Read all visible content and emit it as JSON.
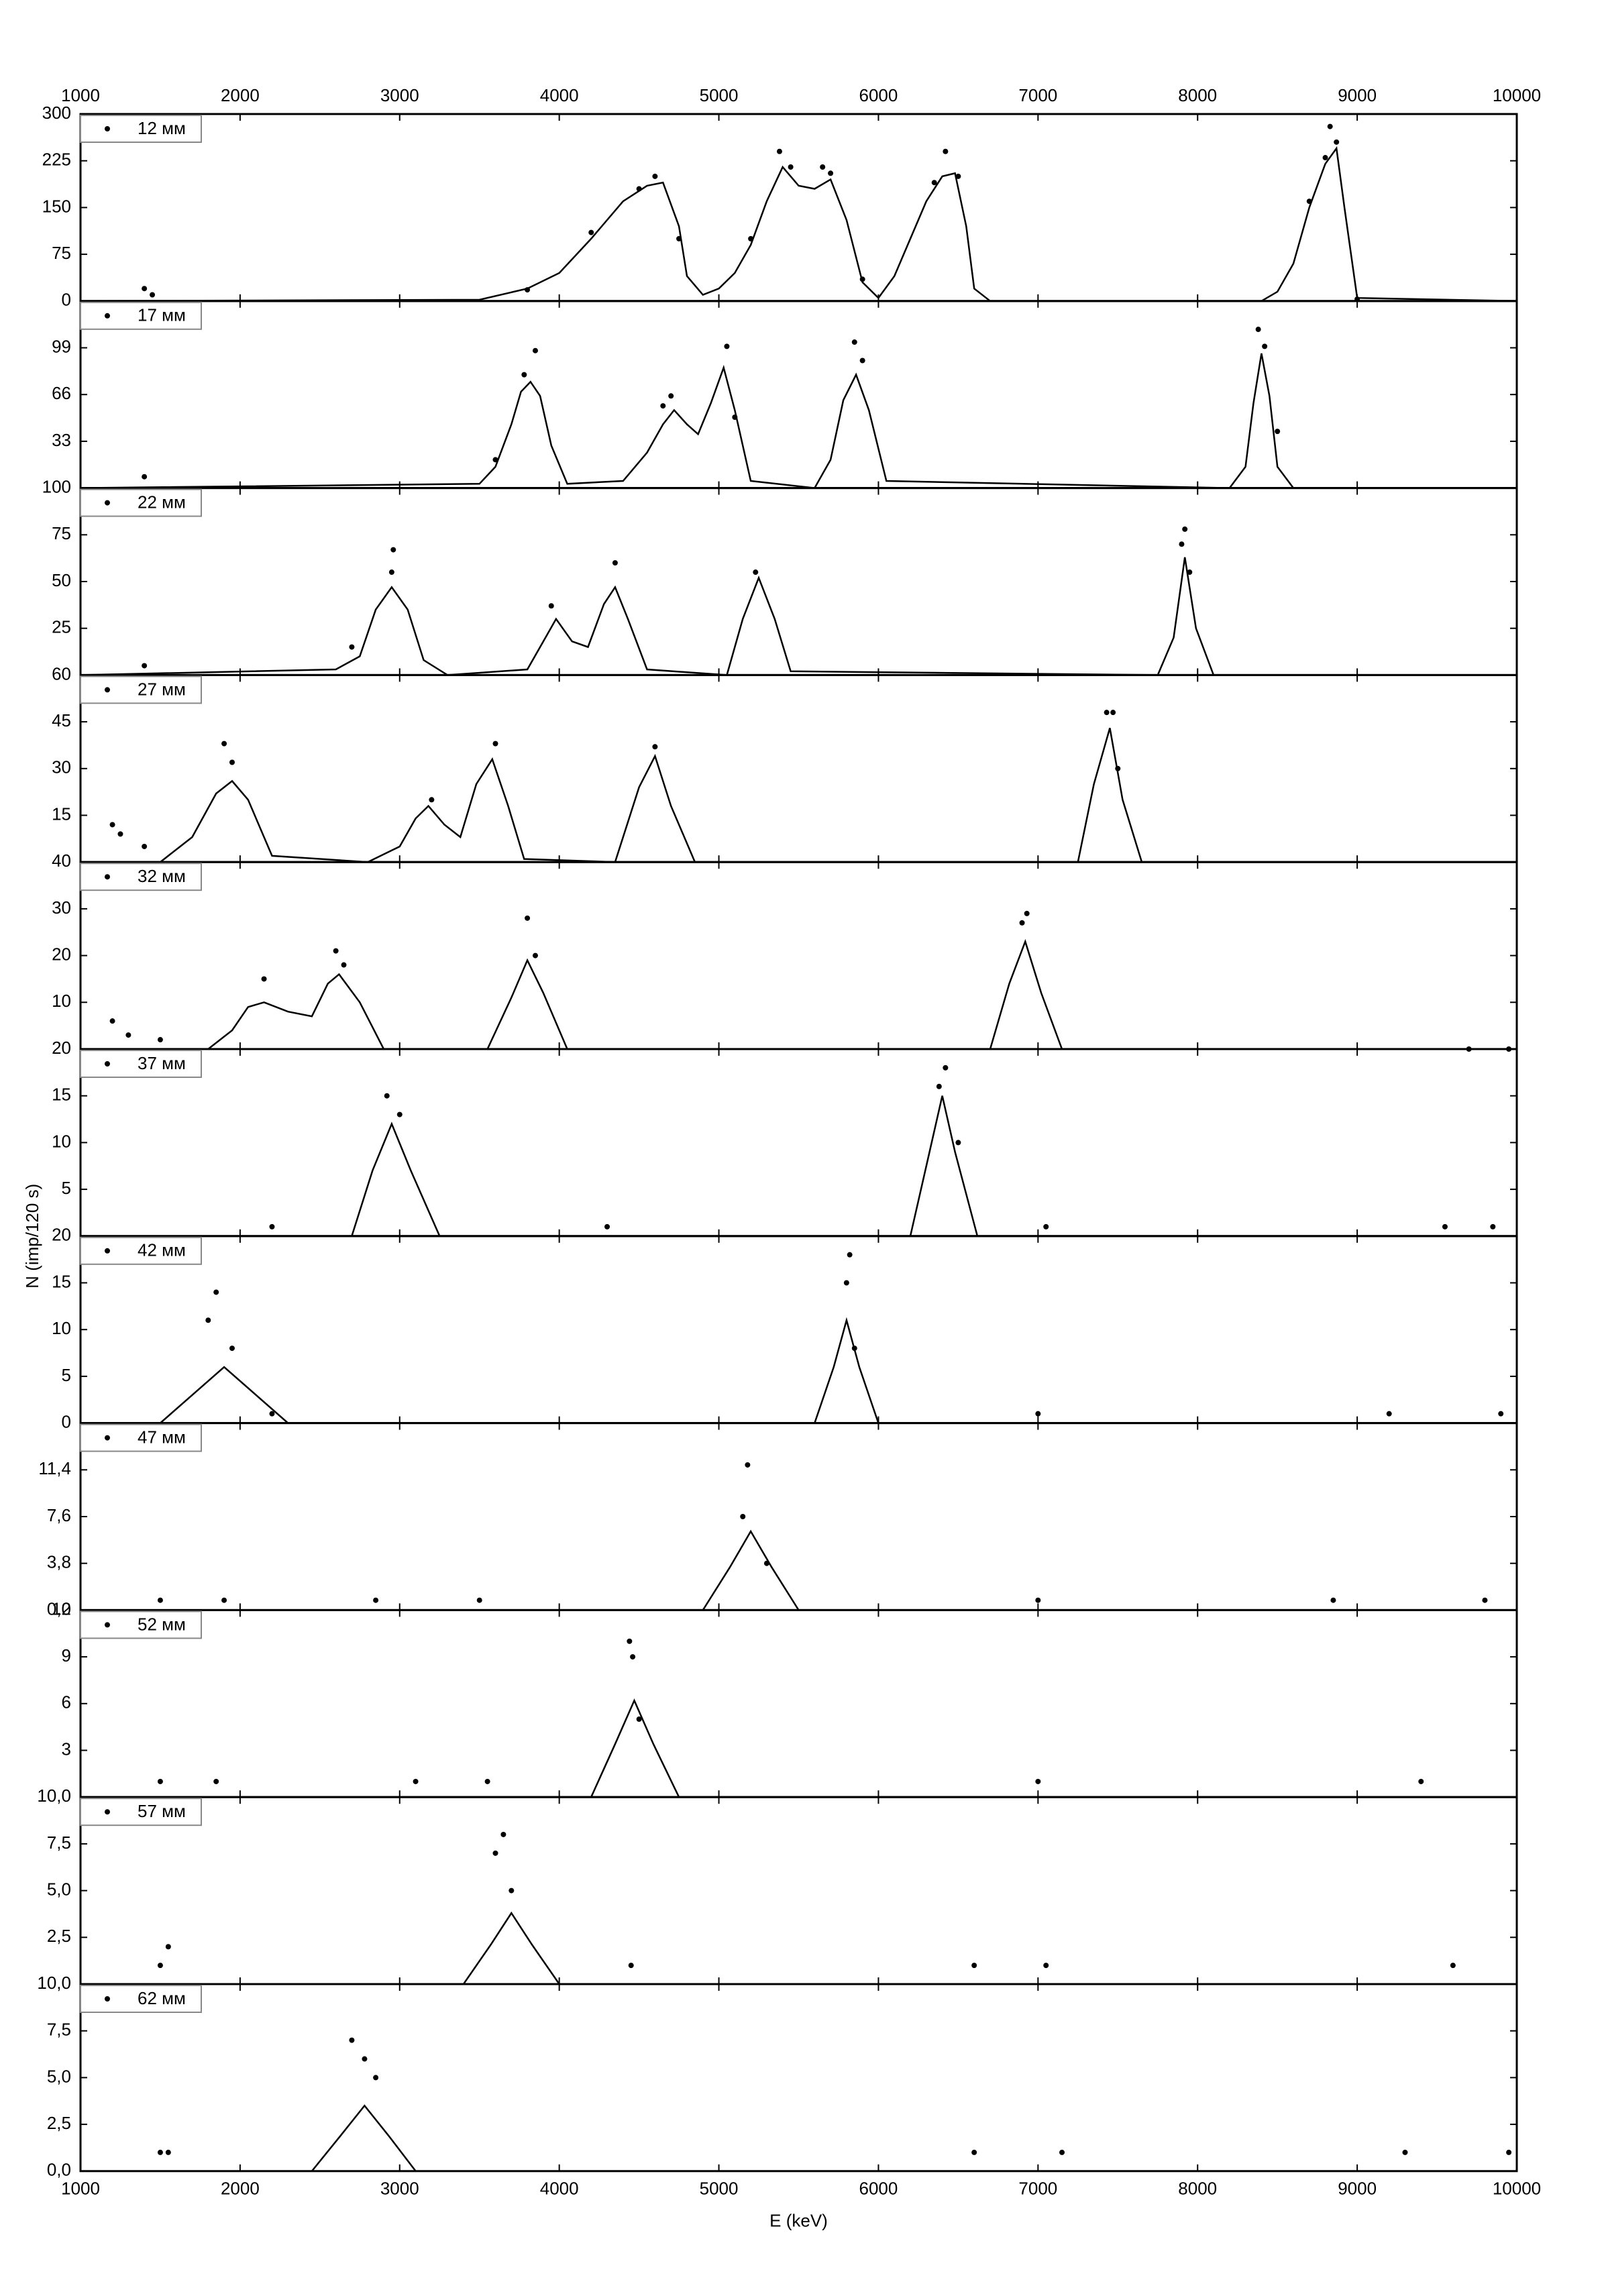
{
  "chart_data": [
    {
      "type": "scatter",
      "ylim": [
        0,
        300
      ],
      "yticks": [
        0,
        75,
        150,
        225,
        300
      ],
      "xlim": [
        1000,
        10000
      ],
      "xticks": [
        1000,
        2000,
        3000,
        4000,
        5000,
        6000,
        7000,
        8000,
        9000,
        10000
      ],
      "series": [
        {
          "name": "12 мм",
          "color": "#000000",
          "x": [
            1400,
            1450,
            3800,
            4200,
            4500,
            4600,
            4750,
            5200,
            5380,
            5450,
            5650,
            5700,
            5900,
            6350,
            6420,
            6500,
            8700,
            8800,
            8830,
            8870,
            9000
          ],
          "values": [
            20,
            10,
            18,
            110,
            180,
            200,
            100,
            100,
            240,
            215,
            215,
            205,
            35,
            190,
            240,
            200,
            160,
            230,
            280,
            255,
            3
          ]
        }
      ],
      "fit": {
        "color": "#000000",
        "x": [
          1000,
          3500,
          3800,
          4000,
          4200,
          4400,
          4550,
          4650,
          4750,
          4800,
          4900,
          5000,
          5100,
          5200,
          5300,
          5400,
          5500,
          5600,
          5700,
          5800,
          5900,
          6000,
          6100,
          6200,
          6300,
          6400,
          6480,
          6550,
          6600,
          6700,
          8400,
          8500,
          8600,
          8700,
          8800,
          8870,
          8920,
          9000,
          10000
        ],
        "values": [
          0,
          2,
          20,
          45,
          100,
          160,
          185,
          190,
          120,
          40,
          10,
          20,
          45,
          90,
          160,
          215,
          185,
          180,
          195,
          130,
          30,
          5,
          40,
          100,
          160,
          200,
          205,
          120,
          20,
          0,
          0,
          15,
          60,
          150,
          220,
          245,
          150,
          5,
          0
        ]
      }
    },
    {
      "type": "scatter",
      "ylim": [
        0,
        132
      ],
      "yticks": [
        33,
        66,
        99
      ],
      "xlim": [
        1000,
        10000
      ],
      "xticks": [
        1000,
        2000,
        3000,
        4000,
        5000,
        6000,
        7000,
        8000,
        9000,
        10000
      ],
      "series": [
        {
          "name": "17 мм",
          "color": "#000000",
          "x": [
            1400,
            3600,
            3780,
            3850,
            4650,
            4700,
            5050,
            5100,
            5850,
            5900,
            8380,
            8420,
            8500
          ],
          "values": [
            8,
            20,
            80,
            97,
            58,
            65,
            100,
            50,
            103,
            90,
            112,
            100,
            40
          ]
        }
      ],
      "fit": {
        "color": "#000000",
        "x": [
          1000,
          3500,
          3600,
          3700,
          3760,
          3820,
          3880,
          3950,
          4050,
          4400,
          4550,
          4650,
          4720,
          4800,
          4870,
          4950,
          5030,
          5100,
          5200,
          5600,
          5700,
          5780,
          5860,
          5940,
          6050,
          8200,
          8300,
          8350,
          8400,
          8450,
          8500,
          8600,
          10000
        ],
        "values": [
          0,
          3,
          15,
          45,
          68,
          75,
          65,
          30,
          3,
          5,
          25,
          45,
          55,
          45,
          38,
          60,
          85,
          55,
          5,
          0,
          20,
          62,
          80,
          55,
          5,
          0,
          15,
          60,
          95,
          65,
          15,
          0,
          0
        ]
      }
    },
    {
      "type": "scatter",
      "ylim": [
        0,
        100
      ],
      "yticks": [
        25,
        50,
        75,
        100
      ],
      "xlim": [
        1000,
        10000
      ],
      "xticks": [
        1000,
        2000,
        3000,
        4000,
        5000,
        6000,
        7000,
        8000,
        9000,
        10000
      ],
      "series": [
        {
          "name": "22 мм",
          "color": "#000000",
          "x": [
            1400,
            2700,
            2950,
            2960,
            3950,
            4350,
            5230,
            7900,
            7920,
            7950
          ],
          "values": [
            5,
            15,
            55,
            67,
            37,
            60,
            55,
            70,
            78,
            55
          ]
        }
      ],
      "fit": {
        "color": "#000000",
        "x": [
          1000,
          2600,
          2750,
          2850,
          2950,
          3050,
          3150,
          3300,
          3800,
          3900,
          3980,
          4080,
          4180,
          4280,
          4350,
          4430,
          4550,
          5050,
          5150,
          5250,
          5350,
          5450,
          7750,
          7850,
          7920,
          7990,
          8100,
          10000
        ],
        "values": [
          0,
          3,
          10,
          35,
          47,
          35,
          8,
          0,
          3,
          18,
          30,
          18,
          15,
          38,
          47,
          30,
          3,
          0,
          30,
          52,
          30,
          2,
          0,
          20,
          63,
          25,
          0,
          0
        ]
      }
    },
    {
      "type": "scatter",
      "ylim": [
        0,
        60
      ],
      "yticks": [
        15,
        30,
        45,
        60
      ],
      "xlim": [
        1000,
        10000
      ],
      "xticks": [
        1000,
        2000,
        3000,
        4000,
        5000,
        6000,
        7000,
        8000,
        9000,
        10000
      ],
      "series": [
        {
          "name": "27 мм",
          "color": "#000000",
          "x": [
            1200,
            1250,
            1400,
            1900,
            1950,
            3200,
            3600,
            4600,
            7430,
            7470,
            7500
          ],
          "values": [
            12,
            9,
            5,
            38,
            32,
            20,
            38,
            37,
            48,
            48,
            30
          ]
        }
      ],
      "fit": {
        "color": "#000000",
        "x": [
          1000,
          1200,
          1500,
          1700,
          1850,
          1950,
          2050,
          2200,
          2800,
          3000,
          3100,
          3180,
          3280,
          3380,
          3480,
          3580,
          3680,
          3780,
          4350,
          4500,
          4600,
          4700,
          4850,
          7250,
          7350,
          7450,
          7530,
          7650,
          10000
        ],
        "values": [
          0,
          0,
          0,
          8,
          22,
          26,
          20,
          2,
          0,
          5,
          14,
          18,
          12,
          8,
          25,
          33,
          18,
          1,
          0,
          24,
          34,
          18,
          0,
          0,
          25,
          43,
          20,
          0,
          0
        ]
      }
    },
    {
      "type": "scatter",
      "ylim": [
        0,
        40
      ],
      "yticks": [
        10,
        20,
        30,
        40
      ],
      "xlim": [
        1000,
        10000
      ],
      "xticks": [
        1000,
        2000,
        3000,
        4000,
        5000,
        6000,
        7000,
        8000,
        9000,
        10000
      ],
      "series": [
        {
          "name": "32 мм",
          "color": "#000000",
          "x": [
            1200,
            1300,
            1500,
            2150,
            2600,
            2650,
            3800,
            3850,
            6900,
            6930,
            9700,
            9950
          ],
          "values": [
            6,
            3,
            2,
            15,
            21,
            18,
            28,
            20,
            27,
            29,
            0,
            0
          ]
        }
      ],
      "fit": {
        "color": "#000000",
        "x": [
          1000,
          1800,
          1950,
          2050,
          2150,
          2300,
          2450,
          2550,
          2620,
          2750,
          2900,
          3550,
          3700,
          3800,
          3900,
          4050,
          6700,
          6820,
          6920,
          7020,
          7150,
          10000
        ],
        "values": [
          0,
          0,
          4,
          9,
          10,
          8,
          7,
          14,
          16,
          10,
          0,
          0,
          11,
          19,
          12,
          0,
          0,
          14,
          23,
          12,
          0,
          0
        ]
      }
    },
    {
      "type": "scatter",
      "ylim": [
        0,
        20
      ],
      "yticks": [
        5,
        10,
        15,
        20
      ],
      "xlim": [
        1000,
        10000
      ],
      "xticks": [
        1000,
        2000,
        3000,
        4000,
        5000,
        6000,
        7000,
        8000,
        9000,
        10000
      ],
      "ylabel": "N (imp/120 s)",
      "series": [
        {
          "name": "37 мм",
          "color": "#000000",
          "x": [
            2200,
            2920,
            3000,
            4300,
            6380,
            6420,
            6500,
            7050,
            9550,
            9850
          ],
          "values": [
            1,
            15,
            13,
            1,
            16,
            18,
            10,
            1,
            1,
            1
          ]
        }
      ],
      "fit": {
        "color": "#000000",
        "x": [
          1000,
          2700,
          2830,
          2950,
          3070,
          3250,
          6200,
          6320,
          6400,
          6480,
          6620,
          10000
        ],
        "values": [
          0,
          0,
          7,
          12,
          7,
          0,
          0,
          9,
          15,
          9,
          0,
          0
        ]
      }
    },
    {
      "type": "scatter",
      "ylim": [
        0,
        20
      ],
      "yticks": [
        0,
        5,
        10,
        15,
        20
      ],
      "xlim": [
        1000,
        10000
      ],
      "xticks": [
        1000,
        2000,
        3000,
        4000,
        5000,
        6000,
        7000,
        8000,
        9000,
        10000
      ],
      "series": [
        {
          "name": "42 мм",
          "color": "#000000",
          "x": [
            1800,
            1850,
            1950,
            2200,
            5800,
            5820,
            5850,
            7000,
            9200,
            9900
          ],
          "values": [
            11,
            14,
            8,
            1,
            15,
            18,
            8,
            1,
            1,
            1
          ]
        }
      ],
      "fit": {
        "color": "#000000",
        "x": [
          1000,
          1500,
          1700,
          1900,
          2100,
          2300,
          5600,
          5720,
          5800,
          5880,
          6000,
          10000
        ],
        "values": [
          0,
          0,
          3,
          6,
          3,
          0,
          0,
          6,
          11,
          6,
          0,
          0
        ]
      }
    },
    {
      "type": "scatter",
      "ylim": [
        0,
        15.2
      ],
      "yticks": [
        {
          "value": 0,
          "label": "0,0"
        },
        {
          "value": 3.8,
          "label": "3,8"
        },
        {
          "value": 7.6,
          "label": "7,6"
        },
        {
          "value": 11.4,
          "label": "11,4"
        }
      ],
      "xlim": [
        1000,
        10000
      ],
      "xticks": [
        1000,
        2000,
        3000,
        4000,
        5000,
        6000,
        7000,
        8000,
        9000,
        10000
      ],
      "series": [
        {
          "name": "47 мм",
          "color": "#000000",
          "x": [
            1500,
            1900,
            2850,
            3500,
            5150,
            5180,
            5300,
            7000,
            8850,
            9800
          ],
          "values": [
            0.8,
            0.8,
            0.8,
            0.8,
            7.6,
            11.8,
            3.8,
            0.8,
            0.8,
            0.8
          ]
        }
      ],
      "fit": {
        "color": "#000000",
        "x": [
          1000,
          4900,
          5070,
          5200,
          5330,
          5500,
          10000
        ],
        "values": [
          0,
          0,
          3.5,
          6.4,
          3.5,
          0,
          0
        ]
      }
    },
    {
      "type": "scatter",
      "ylim": [
        0,
        12
      ],
      "yticks": [
        3,
        6,
        9,
        12
      ],
      "xlim": [
        1000,
        10000
      ],
      "xticks": [
        1000,
        2000,
        3000,
        4000,
        5000,
        6000,
        7000,
        8000,
        9000,
        10000
      ],
      "series": [
        {
          "name": "52 мм",
          "color": "#000000",
          "x": [
            1500,
            1850,
            3100,
            3550,
            4440,
            4460,
            4500,
            7000,
            9400
          ],
          "values": [
            1,
            1,
            1,
            1,
            10,
            9,
            5,
            1,
            1
          ]
        }
      ],
      "fit": {
        "color": "#000000",
        "x": [
          1000,
          4200,
          4350,
          4470,
          4590,
          4750,
          10000
        ],
        "values": [
          0,
          0,
          3.4,
          6.2,
          3.4,
          0,
          0
        ]
      }
    },
    {
      "type": "scatter",
      "ylim": [
        0,
        10
      ],
      "yticks": [
        {
          "value": 2.5,
          "label": "2,5"
        },
        {
          "value": 5,
          "label": "5,0"
        },
        {
          "value": 7.5,
          "label": "7,5"
        },
        {
          "value": 10,
          "label": "10,0"
        }
      ],
      "xlim": [
        1000,
        10000
      ],
      "xticks": [
        1000,
        2000,
        3000,
        4000,
        5000,
        6000,
        7000,
        8000,
        9000,
        10000
      ],
      "series": [
        {
          "name": "57 мм",
          "color": "#000000",
          "x": [
            1500,
            1550,
            3600,
            3650,
            3700,
            4450,
            6600,
            7050,
            9600
          ],
          "values": [
            1,
            2,
            7,
            8,
            5,
            1,
            1,
            1,
            1
          ]
        }
      ],
      "fit": {
        "color": "#000000",
        "x": [
          1000,
          3400,
          3570,
          3700,
          3830,
          4000,
          10000
        ],
        "values": [
          0,
          0,
          2.1,
          3.8,
          2.1,
          0,
          0
        ]
      }
    },
    {
      "type": "scatter",
      "ylim": [
        0,
        10
      ],
      "yticks": [
        {
          "value": 0,
          "label": "0,0"
        },
        {
          "value": 2.5,
          "label": "2,5"
        },
        {
          "value": 5,
          "label": "5,0"
        },
        {
          "value": 7.5,
          "label": "7,5"
        },
        {
          "value": 10,
          "label": "10,0"
        }
      ],
      "xlim": [
        1000,
        10000
      ],
      "xticks": [
        1000,
        2000,
        3000,
        4000,
        5000,
        6000,
        7000,
        8000,
        9000,
        10000
      ],
      "xlabel": "E (keV)",
      "series": [
        {
          "name": "62 мм",
          "color": "#000000",
          "x": [
            1500,
            1550,
            2700,
            2780,
            2850,
            6600,
            7150,
            9300,
            9950
          ],
          "values": [
            1,
            1,
            7,
            6,
            5,
            1,
            1,
            1,
            1
          ]
        }
      ],
      "fit": {
        "color": "#000000",
        "x": [
          1000,
          2450,
          2630,
          2780,
          2930,
          3100,
          10000
        ],
        "values": [
          0,
          0,
          1.9,
          3.5,
          1.9,
          0,
          0
        ]
      }
    }
  ]
}
